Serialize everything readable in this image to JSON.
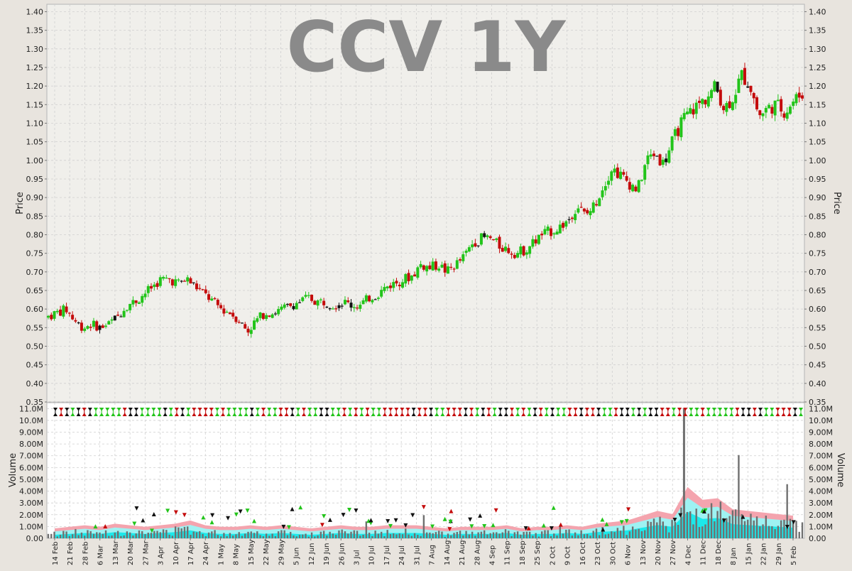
{
  "colors": {
    "up": "#22c41a",
    "down": "#c40c0c",
    "flat": "#111111",
    "volume_bar": "#707070",
    "band_pink": "#f4a4ae",
    "band_cyan": "#1ce8ea",
    "band_light": "#9ef2f2",
    "grid": "#cfcfcf",
    "plot_bg": "#f0efeb",
    "title_color": "#8a8a8a"
  },
  "chart_data": [
    {
      "type": "candlestick",
      "title": "CCV 1Y",
      "ylabel": "Price",
      "ylim": [
        0.35,
        1.42
      ],
      "yticks": [
        "0.35",
        "0.40",
        "0.45",
        "0.50",
        "0.55",
        "0.60",
        "0.65",
        "0.70",
        "0.75",
        "0.80",
        "0.85",
        "0.90",
        "0.95",
        "1.00",
        "1.05",
        "1.10",
        "1.15",
        "1.20",
        "1.25",
        "1.30",
        "1.35",
        "1.40"
      ],
      "grid": true,
      "series": [
        {
          "values": [
            0.58,
            0.59,
            0.6,
            0.57,
            0.55,
            0.56,
            0.55,
            0.56,
            0.58,
            0.61,
            0.62,
            0.64,
            0.66,
            0.68,
            0.68,
            0.67,
            0.68,
            0.66,
            0.64,
            0.62,
            0.6,
            0.59,
            0.57,
            0.54,
            0.57,
            0.59,
            0.59,
            0.6,
            0.61,
            0.62,
            0.63,
            0.62,
            0.62,
            0.61,
            0.62,
            0.61,
            0.61,
            0.63,
            0.64,
            0.66,
            0.67,
            0.68,
            0.69,
            0.72,
            0.71,
            0.72,
            0.7,
            0.72,
            0.74,
            0.78,
            0.79,
            0.79,
            0.77,
            0.76,
            0.75,
            0.76,
            0.78,
            0.8,
            0.81,
            0.82,
            0.84,
            0.88,
            0.85,
            0.88,
            0.93,
            0.98,
            0.96,
            0.94,
            0.92,
            1.0,
            1.02,
            0.99,
            1.05,
            1.1,
            1.13,
            1.15,
            1.17,
            1.2,
            1.14,
            1.17,
            1.23,
            1.2,
            1.12,
            1.14,
            1.15,
            1.13,
            1.16,
            1.18
          ]
        }
      ]
    },
    {
      "type": "bar",
      "ylabel": "Volume",
      "ylim": [
        0,
        11500000
      ],
      "yticks": [
        "0.00",
        "1.00M",
        "2.00M",
        "3.00M",
        "4.00M",
        "5.00M",
        "6.00M",
        "7.00M",
        "8.00M",
        "9.00M",
        "10.0M",
        "11.0M"
      ],
      "grid": true,
      "x_labels": [
        "14 Feb",
        "21 Feb",
        "28 Feb",
        "6 Mar",
        "13 Mar",
        "20 Mar",
        "27 Mar",
        "3 Apr",
        "10 Apr",
        "17 Apr",
        "24 Apr",
        "1 May",
        "8 May",
        "15 May",
        "22 May",
        "29 May",
        "5 Jun",
        "12 Jun",
        "19 Jun",
        "26 Jun",
        "3 Jul",
        "10 Jul",
        "17 Jul",
        "24 Jul",
        "31 Jul",
        "7 Aug",
        "14 Aug",
        "21 Aug",
        "28 Aug",
        "4 Sep",
        "11 Sep",
        "18 Sep",
        "25 Sep",
        "2 Oct",
        "9 Oct",
        "16 Oct",
        "23 Oct",
        "30 Oct",
        "6 Nov",
        "13 Nov",
        "20 Nov",
        "27 Nov",
        "4 Dec",
        "11 Dec",
        "18 Dec",
        "8 Jan",
        "15 Jan",
        "22 Jan",
        "29 Jan",
        "5 Feb"
      ],
      "series": [
        {
          "values": [
            0.4,
            0.5,
            0.6,
            0.5,
            0.7,
            0.6,
            0.5,
            0.6,
            0.7,
            0.9,
            0.6,
            0.5,
            0.5,
            0.6,
            0.5,
            0.6,
            0.5,
            0.4,
            0.5,
            0.6,
            0.5,
            0.5,
            0.6,
            0.6,
            0.6,
            0.5,
            0.4,
            0.5,
            0.5,
            0.5,
            0.6,
            0.4,
            0.5,
            0.5,
            0.6,
            0.5,
            0.7,
            0.8,
            0.9,
            1.2,
            1.5,
            1.3,
            11.0,
            2.2,
            2.3,
            1.6,
            1.5,
            1.4,
            1.3,
            1.2
          ]
        }
      ]
    }
  ]
}
